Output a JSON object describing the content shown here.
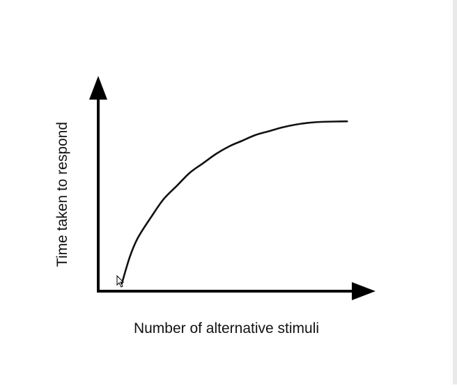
{
  "chart_data": {
    "type": "line",
    "title": "",
    "xlabel": "Number of alternative stimuli",
    "ylabel": "Time taken to respond",
    "xlim": [
      0,
      10
    ],
    "ylim": [
      0,
      10
    ],
    "grid": false,
    "legend": "none",
    "ticks": false,
    "series": [
      {
        "x": [
          0.9,
          1.2,
          1.5,
          2.0,
          2.5,
          3.0,
          3.5,
          4.0,
          4.5,
          5.0,
          5.5,
          6.0,
          6.5,
          7.0,
          7.5,
          8.0,
          8.5,
          9.0,
          9.5
        ],
        "values": [
          0.4,
          1.8,
          2.8,
          3.9,
          4.9,
          5.6,
          6.3,
          6.8,
          7.3,
          7.7,
          8.0,
          8.3,
          8.5,
          8.7,
          8.85,
          8.95,
          9.0,
          9.02,
          9.03
        ]
      }
    ]
  },
  "colors": {
    "axis": "#000000",
    "curve": "#111111",
    "text": "#111111",
    "background": "#ffffff"
  }
}
